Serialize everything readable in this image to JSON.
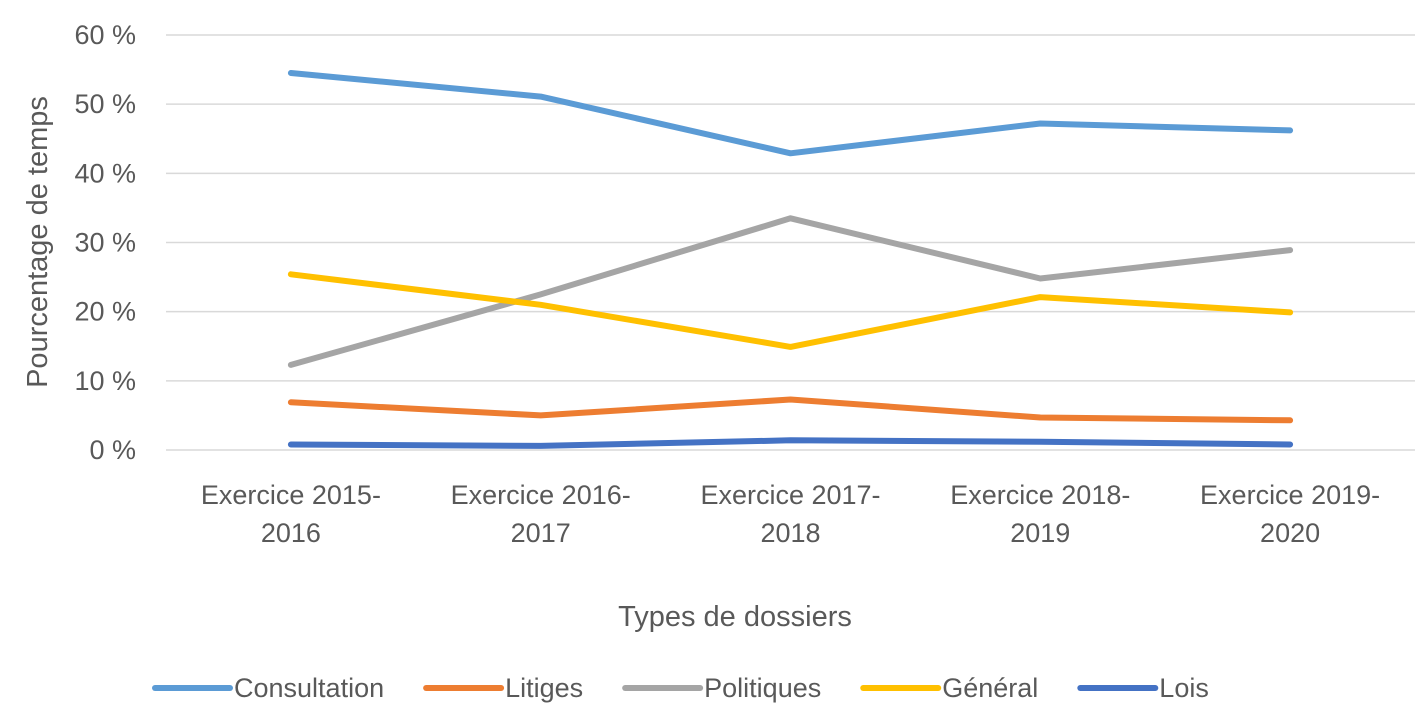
{
  "chart_data": {
    "type": "line",
    "categories": [
      [
        "Exercice 2015-",
        "2016"
      ],
      [
        "Exercice 2016-",
        "2017"
      ],
      [
        "Exercice 2017-",
        "2018"
      ],
      [
        "Exercice 2018-",
        "2019"
      ],
      [
        "Exercice 2019-",
        "2020"
      ]
    ],
    "series": [
      {
        "name": "Consultation",
        "color": "#5b9bd5",
        "values": [
          54.5,
          51.1,
          42.9,
          47.2,
          46.2
        ]
      },
      {
        "name": "Litiges",
        "color": "#ed7d31",
        "values": [
          6.9,
          5.0,
          7.3,
          4.7,
          4.3
        ]
      },
      {
        "name": "Politiques",
        "color": "#a5a5a5",
        "values": [
          12.3,
          22.5,
          33.5,
          24.8,
          28.9
        ]
      },
      {
        "name": "Général",
        "color": "#ffc000",
        "values": [
          25.4,
          21.0,
          14.9,
          22.1,
          19.9
        ]
      },
      {
        "name": "Lois",
        "color": "#4472c4",
        "values": [
          0.8,
          0.6,
          1.4,
          1.2,
          0.8
        ]
      }
    ],
    "yticks": [
      "0 %",
      "10 %",
      "20 %",
      "30 %",
      "40 %",
      "50 %",
      "60 %"
    ],
    "ylim": [
      0,
      60
    ],
    "xlabel": "Types de dossiers",
    "ylabel": "Pourcentage de temps",
    "grid": true,
    "legend_position": "bottom"
  }
}
